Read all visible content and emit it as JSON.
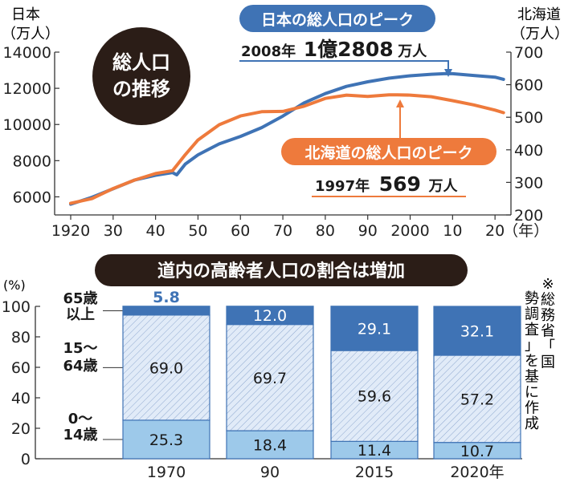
{
  "chart_data": [
    {
      "type": "line",
      "left_axis_label": [
        "日本",
        "（万人）"
      ],
      "right_axis_label": [
        "北海道",
        "（万人）"
      ],
      "badge": [
        "総人口",
        "の推移"
      ],
      "x_ticks": [
        "1920",
        "30",
        "40",
        "50",
        "60",
        "70",
        "80",
        "90",
        "2000",
        "10",
        "20"
      ],
      "x_unit": "（年）",
      "xlim": [
        1920,
        2023
      ],
      "left_ylim": [
        5000,
        14000
      ],
      "left_ticks": [
        6000,
        8000,
        10000,
        12000,
        14000
      ],
      "right_ylim": [
        200,
        700
      ],
      "right_ticks": [
        200,
        300,
        400,
        500,
        600,
        700
      ],
      "series": [
        {
          "name": "日本",
          "color": "#3f73b5",
          "axis": "left",
          "points": [
            [
              1920,
              5596
            ],
            [
              1925,
              5974
            ],
            [
              1930,
              6445
            ],
            [
              1935,
              6925
            ],
            [
              1940,
              7193
            ],
            [
              1944,
              7343
            ],
            [
              1945,
              7215
            ],
            [
              1947,
              7810
            ],
            [
              1950,
              8320
            ],
            [
              1955,
              8928
            ],
            [
              1960,
              9342
            ],
            [
              1965,
              9828
            ],
            [
              1970,
              10467
            ],
            [
              1975,
              11194
            ],
            [
              1980,
              11706
            ],
            [
              1985,
              12105
            ],
            [
              1990,
              12361
            ],
            [
              1995,
              12557
            ],
            [
              2000,
              12693
            ],
            [
              2005,
              12777
            ],
            [
              2008,
              12808
            ],
            [
              2010,
              12806
            ],
            [
              2015,
              12709
            ],
            [
              2020,
              12615
            ],
            [
              2022,
              12495
            ]
          ]
        },
        {
          "name": "北海道",
          "color": "#ee7a3c",
          "axis": "right",
          "points": [
            [
              1920,
              236
            ],
            [
              1925,
              250
            ],
            [
              1930,
              281
            ],
            [
              1935,
              307
            ],
            [
              1940,
              327
            ],
            [
              1944,
              336
            ],
            [
              1945,
              352
            ],
            [
              1947,
              385
            ],
            [
              1950,
              430
            ],
            [
              1955,
              477
            ],
            [
              1960,
              504
            ],
            [
              1965,
              517
            ],
            [
              1970,
              518
            ],
            [
              1975,
              534
            ],
            [
              1980,
              558
            ],
            [
              1985,
              568
            ],
            [
              1990,
              564
            ],
            [
              1995,
              569
            ],
            [
              1997,
              569
            ],
            [
              2000,
              568
            ],
            [
              2005,
              563
            ],
            [
              2010,
              551
            ],
            [
              2015,
              538
            ],
            [
              2020,
              522
            ],
            [
              2022,
              514
            ]
          ]
        }
      ],
      "callouts": {
        "japan_title": "日本の総人口のピーク",
        "japan_year": "2008年",
        "japan_value": "1億2808",
        "japan_unit": "万人",
        "hokkaido_title": "北海道の総人口のピーク",
        "hokkaido_year": "1997年",
        "hokkaido_value": "569",
        "hokkaido_unit": "万人"
      }
    },
    {
      "type": "bar",
      "stacked": true,
      "title": "道内の高齢者人口の割合は増加",
      "y_unit": "(%)",
      "ylim": [
        0,
        100
      ],
      "y_ticks": [
        0,
        20,
        40,
        60,
        80,
        100
      ],
      "categories": [
        "1970",
        "90",
        "2015",
        "2020年"
      ],
      "series": [
        {
          "name": [
            "0〜",
            "14歳"
          ],
          "color": "#9dc9ea",
          "values": [
            25.3,
            18.4,
            11.4,
            10.7
          ]
        },
        {
          "name": [
            "15〜",
            "64歳"
          ],
          "color": "#e1ebf8",
          "hatched": true,
          "values": [
            69.0,
            69.7,
            59.6,
            57.2
          ]
        },
        {
          "name": [
            "65歳",
            "以上"
          ],
          "color": "#3f73b5",
          "values": [
            5.8,
            12.0,
            29.1,
            32.1
          ]
        }
      ],
      "value_labels": [
        [
          "25.3",
          "18.4",
          "11.4",
          "10.7"
        ],
        [
          "69.0",
          "69.7",
          "59.6",
          "57.2"
        ],
        [
          "5.8",
          "12.0",
          "29.1",
          "32.1"
        ]
      ],
      "source_note": "※総務省「国勢調査」を基に作成"
    }
  ]
}
